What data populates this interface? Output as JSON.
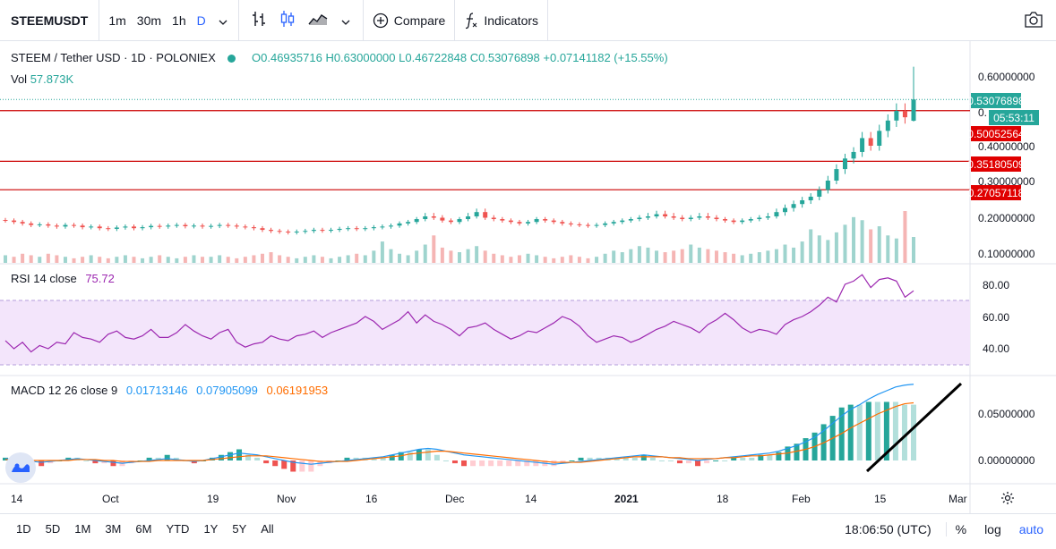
{
  "toolbar": {
    "symbol": "STEEMUSDT",
    "resolutions": [
      "1m",
      "30m",
      "1h",
      "D"
    ],
    "active_resolution": "D",
    "compare_label": "Compare",
    "indicators_label": "Indicators",
    "icons": [
      "chevron-down-icon",
      "bar-chart-icon",
      "candlestick-icon",
      "area-chart-icon",
      "plus-circle-icon",
      "function-icon",
      "camera-icon"
    ]
  },
  "legend": {
    "title": "STEEM / Tether USD · 1D · POLONIEX",
    "open": "O0.46935716",
    "high": "H0.63000000",
    "low": "L0.46722848",
    "close": "C0.53076898",
    "change": "+0.07141182 (+15.55%)",
    "vol_label": "Vol",
    "vol_value": "57.873K"
  },
  "rsi": {
    "label": "RSI 14 close",
    "value": "75.72"
  },
  "macd": {
    "label": "MACD 12 26 close 9",
    "macd": "0.01713146",
    "signal": "0.07905099",
    "hist": "0.06191953"
  },
  "price_axis": {
    "ticks": [
      "0.60000000",
      "0.40000000",
      "0.30000000",
      "0.20000000",
      "0.10000000"
    ],
    "labels": {
      "last": "0.53076898",
      "countdown": "05:53:11",
      "line1": "0.50052564",
      "line2": "0.35180509",
      "line3": "0.27057118"
    },
    "partial": "0."
  },
  "rsi_axis": [
    "80.00",
    "60.00",
    "40.00"
  ],
  "macd_axis": [
    "0.05000000",
    "0.00000000"
  ],
  "time_axis": [
    "14",
    "Oct",
    "19",
    "Nov",
    "16",
    "Dec",
    "14",
    "2021",
    "18",
    "Feb",
    "15",
    "Mar"
  ],
  "bottombar": {
    "ranges": [
      "1D",
      "5D",
      "1M",
      "3M",
      "6M",
      "YTD",
      "1Y",
      "5Y",
      "All"
    ],
    "clock": "18:06:50 (UTC)",
    "percent": "%",
    "log": "log",
    "auto": "auto"
  },
  "colors": {
    "up": "#26a69a",
    "down": "#ef5350",
    "hline": "#cc0000",
    "rsi": "#9c27b0",
    "macd": "#2196f3",
    "signal": "#ff6d00"
  },
  "chart_data": {
    "type": "candlestick",
    "symbol": "STEEM / Tether USD",
    "interval": "1D",
    "exchange": "POLONIEX",
    "last_candle": {
      "open": 0.46935716,
      "high": 0.63,
      "low": 0.46722848,
      "close": 0.53076898
    },
    "horizontal_lines": [
      0.50052564,
      0.35180509,
      0.27057118
    ],
    "series_close": [
      0.185,
      0.18,
      0.175,
      0.17,
      0.172,
      0.168,
      0.165,
      0.17,
      0.168,
      0.163,
      0.165,
      0.16,
      0.158,
      0.162,
      0.165,
      0.16,
      0.163,
      0.167,
      0.165,
      0.168,
      0.17,
      0.166,
      0.168,
      0.165,
      0.167,
      0.17,
      0.168,
      0.165,
      0.163,
      0.16,
      0.155,
      0.152,
      0.15,
      0.148,
      0.15,
      0.152,
      0.155,
      0.153,
      0.155,
      0.158,
      0.16,
      0.158,
      0.16,
      0.163,
      0.165,
      0.168,
      0.175,
      0.18,
      0.19,
      0.2,
      0.195,
      0.185,
      0.18,
      0.19,
      0.2,
      0.21,
      0.195,
      0.19,
      0.185,
      0.18,
      0.175,
      0.18,
      0.19,
      0.185,
      0.18,
      0.175,
      0.172,
      0.17,
      0.168,
      0.17,
      0.175,
      0.18,
      0.185,
      0.19,
      0.195,
      0.2,
      0.205,
      0.2,
      0.195,
      0.19,
      0.195,
      0.2,
      0.195,
      0.19,
      0.185,
      0.18,
      0.185,
      0.19,
      0.195,
      0.2,
      0.21,
      0.22,
      0.23,
      0.24,
      0.25,
      0.27,
      0.3,
      0.33,
      0.36,
      0.38,
      0.42,
      0.4,
      0.44,
      0.47,
      0.5,
      0.48,
      0.53
    ],
    "volume": [
      5,
      4,
      6,
      5,
      4,
      6,
      5,
      4,
      3,
      4,
      5,
      4,
      3,
      4,
      5,
      4,
      3,
      4,
      5,
      4,
      3,
      4,
      5,
      4,
      4,
      5,
      4,
      3,
      4,
      5,
      6,
      7,
      5,
      4,
      3,
      4,
      5,
      4,
      3,
      4,
      5,
      6,
      5,
      8,
      14,
      9,
      6,
      5,
      8,
      12,
      18,
      10,
      8,
      7,
      9,
      11,
      8,
      6,
      5,
      4,
      5,
      6,
      5,
      4,
      3,
      4,
      5,
      4,
      3,
      4,
      6,
      8,
      7,
      9,
      11,
      10,
      8,
      7,
      8,
      9,
      12,
      10,
      9,
      8,
      7,
      6,
      5,
      6,
      7,
      8,
      9,
      12,
      10,
      14,
      22,
      18,
      15,
      20,
      25,
      30,
      28,
      22,
      24,
      18,
      16,
      34,
      17
    ],
    "rsi": [
      45,
      40,
      44,
      38,
      42,
      40,
      44,
      43,
      50,
      47,
      46,
      44,
      49,
      51,
      47,
      46,
      48,
      52,
      47,
      47,
      50,
      55,
      51,
      48,
      46,
      50,
      52,
      44,
      41,
      43,
      44,
      48,
      46,
      45,
      48,
      49,
      51,
      47,
      50,
      52,
      54,
      56,
      60,
      57,
      52,
      55,
      58,
      63,
      56,
      61,
      57,
      55,
      52,
      48,
      53,
      54,
      56,
      52,
      49,
      46,
      48,
      51,
      50,
      53,
      56,
      60,
      58,
      54,
      48,
      44,
      46,
      48,
      47,
      44,
      46,
      49,
      52,
      54,
      57,
      55,
      53,
      50,
      55,
      58,
      62,
      58,
      53,
      50,
      52,
      51,
      49,
      55,
      58,
      60,
      63,
      67,
      72,
      69,
      80,
      82,
      86,
      78,
      83,
      84,
      82,
      72,
      76
    ],
    "macd": [
      0.002,
      0.001,
      0.0,
      -0.001,
      -0.002,
      -0.001,
      0.0,
      0.001,
      0.002,
      0.001,
      0.0,
      -0.001,
      -0.002,
      -0.003,
      -0.002,
      -0.001,
      0.0,
      0.001,
      0.002,
      0.001,
      0.0,
      -0.001,
      0.0,
      0.002,
      0.004,
      0.006,
      0.008,
      0.007,
      0.006,
      0.004,
      0.002,
      0.0,
      -0.002,
      -0.003,
      -0.004,
      -0.003,
      -0.002,
      -0.001,
      0.0,
      0.001,
      0.002,
      0.003,
      0.004,
      0.006,
      0.008,
      0.01,
      0.012,
      0.013,
      0.012,
      0.01,
      0.008,
      0.006,
      0.005,
      0.004,
      0.003,
      0.002,
      0.001,
      0.0,
      -0.001,
      -0.002,
      -0.003,
      -0.004,
      -0.003,
      -0.002,
      -0.001,
      0.0,
      0.001,
      0.002,
      0.003,
      0.004,
      0.005,
      0.006,
      0.005,
      0.004,
      0.003,
      0.002,
      0.001,
      0.0,
      0.001,
      0.002,
      0.003,
      0.004,
      0.005,
      0.006,
      0.007,
      0.008,
      0.01,
      0.013,
      0.016,
      0.02,
      0.025,
      0.032,
      0.04,
      0.048,
      0.055,
      0.06,
      0.066,
      0.071,
      0.075,
      0.079,
      0.081,
      0.082
    ],
    "signal": [
      0.001,
      0.001,
      0.001,
      0.0,
      0.0,
      0.0,
      0.0,
      0.0,
      0.001,
      0.001,
      0.001,
      0.0,
      0.0,
      -0.001,
      -0.001,
      -0.001,
      -0.001,
      0.0,
      0.0,
      0.0,
      0.0,
      0.0,
      0.0,
      0.001,
      0.002,
      0.003,
      0.004,
      0.005,
      0.005,
      0.005,
      0.004,
      0.003,
      0.002,
      0.001,
      0.0,
      -0.001,
      -0.001,
      -0.001,
      -0.001,
      0.0,
      0.001,
      0.002,
      0.003,
      0.004,
      0.005,
      0.007,
      0.008,
      0.009,
      0.01,
      0.01,
      0.009,
      0.008,
      0.007,
      0.006,
      0.005,
      0.004,
      0.003,
      0.002,
      0.001,
      0.0,
      -0.001,
      -0.002,
      -0.002,
      -0.002,
      -0.002,
      -0.001,
      0.0,
      0.001,
      0.002,
      0.003,
      0.004,
      0.004,
      0.004,
      0.004,
      0.003,
      0.003,
      0.002,
      0.002,
      0.002,
      0.002,
      0.003,
      0.003,
      0.004,
      0.005,
      0.005,
      0.006,
      0.007,
      0.008,
      0.01,
      0.012,
      0.015,
      0.019,
      0.024,
      0.029,
      0.035,
      0.04,
      0.045,
      0.05,
      0.054,
      0.058,
      0.061,
      0.062
    ]
  }
}
